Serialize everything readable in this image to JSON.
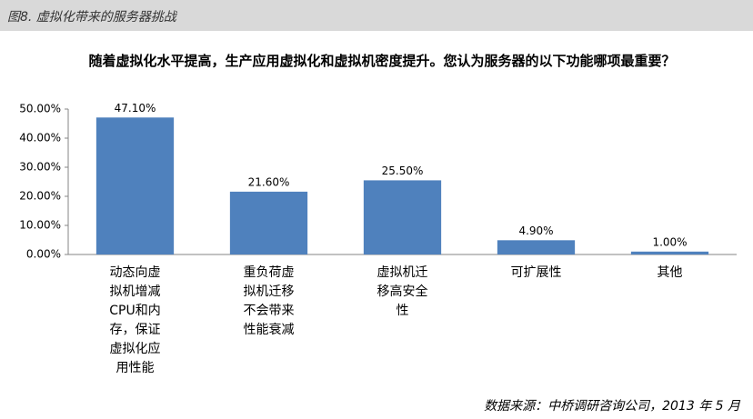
{
  "header": {
    "title": "图8. 虚拟化带来的服务器挑战"
  },
  "chart_data": {
    "type": "bar",
    "title": "随着虚拟化水平提高，生产应用虚拟化和虚拟机密度提升。您认为服务器的以下功能哪项最重要？",
    "categories": [
      "动态向虚拟机增减CPU和内存，保证虚拟化应用性能",
      "重负荷虚拟机迁移不会带来性能衰减",
      "虚拟机迁移高安全性",
      "可扩展性",
      "其他"
    ],
    "values": [
      47.1,
      21.6,
      25.5,
      4.9,
      1.0
    ],
    "value_labels": [
      "47.10%",
      "21.60%",
      "25.50%",
      "4.90%",
      "1.00%"
    ],
    "color": "#4f81bd",
    "ylim": [
      0,
      50
    ],
    "yticks": [
      {
        "value": 0,
        "label": "0.00%"
      },
      {
        "value": 10,
        "label": "10.00%"
      },
      {
        "value": 20,
        "label": "20.00%"
      },
      {
        "value": 30,
        "label": "30.00%"
      },
      {
        "value": 40,
        "label": "40.00%"
      },
      {
        "value": 50,
        "label": "50.00%"
      }
    ],
    "grid": false
  },
  "source": "数据来源：中桥调研咨询公司，2013 年 5 月"
}
